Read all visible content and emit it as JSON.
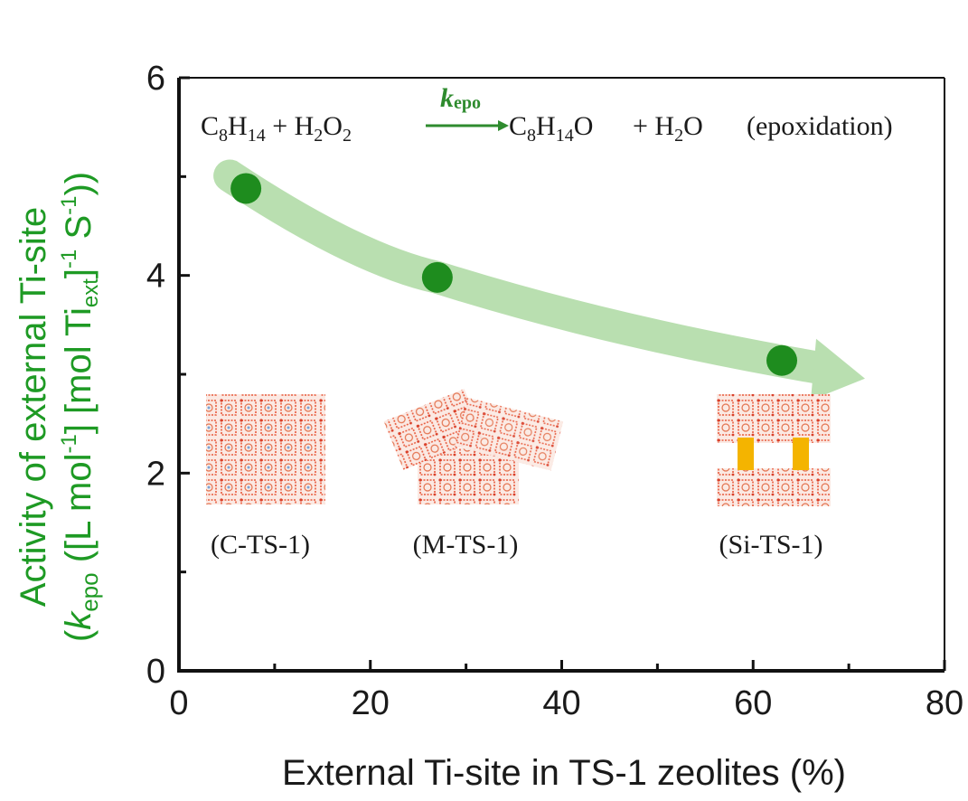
{
  "chart_data": {
    "type": "scatter",
    "xlabel": "External Ti-site in TS-1 zeolites (%)",
    "ylabel_line1": "Activity of external Ti-site",
    "ylabel_line2": {
      "open": "(",
      "k": "k",
      "k_sub": "epo",
      "rest": " ([L mol",
      "sup1": "-1",
      "rest2": "] [mol Ti",
      "sub_ext": "ext",
      "rest3": "]",
      "sup2": "-1",
      "rest4": " S",
      "sup3": "-1",
      "close": "))"
    },
    "xlim": [
      0,
      80
    ],
    "ylim": [
      0,
      6
    ],
    "xticks": [
      "0",
      "20",
      "40",
      "60",
      "80"
    ],
    "yticks": [
      "0",
      "2",
      "4",
      "6"
    ],
    "series": [
      {
        "x": [
          7,
          27,
          63
        ],
        "y": [
          4.88,
          3.98,
          3.14
        ],
        "color": "#1e8c1e"
      }
    ],
    "trend_arrow_color": "#b9dfb0",
    "point_labels": [
      "(C-TS-1)",
      "(M-TS-1)",
      "(Si-TS-1)"
    ],
    "equation": {
      "reactant1": "C",
      "r1_sub1": "8",
      "r1_h": "H",
      "r1_sub2": "14",
      "plus1": " + H",
      "h2o2_sub1": "2",
      "h2o2_o": "O",
      "h2o2_sub2": "2",
      "k": "k",
      "k_sub": "epo",
      "product": "C",
      "p_sub1": "8",
      "p_h": "H",
      "p_sub2": "14",
      "p_o": "O",
      "plus2": "+ H",
      "h2o_sub": "2",
      "h2o_o": "O",
      "note": "(epoxidation)"
    },
    "grid": false
  }
}
